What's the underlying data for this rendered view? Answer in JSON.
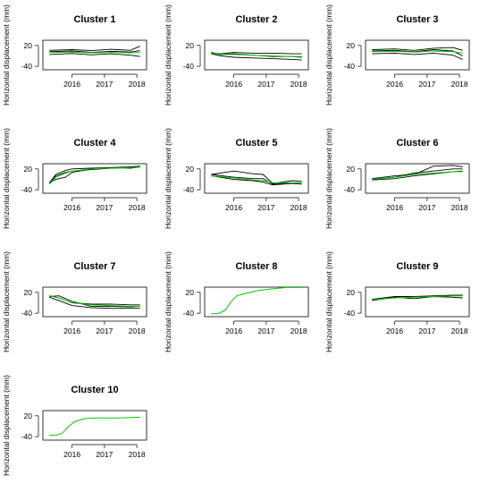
{
  "figure": {
    "panels": [
      {
        "id": 1,
        "title": "Cluster 1"
      },
      {
        "id": 2,
        "title": "Cluster 2"
      },
      {
        "id": 3,
        "title": "Cluster 3"
      },
      {
        "id": 4,
        "title": "Cluster 4"
      },
      {
        "id": 5,
        "title": "Cluster 5"
      },
      {
        "id": 6,
        "title": "Cluster 6"
      },
      {
        "id": 7,
        "title": "Cluster 7"
      },
      {
        "id": 8,
        "title": "Cluster 8"
      },
      {
        "id": 9,
        "title": "Cluster 9"
      },
      {
        "id": 10,
        "title": "Cluster 10"
      }
    ]
  },
  "chart_data": {
    "type": "line",
    "layout": "small-multiples",
    "ylabel": "Horizontal displacement (mm)",
    "xlabel": "",
    "xlim": [
      2015.1,
      2018.3
    ],
    "ylim": [
      -50,
      35
    ],
    "x_ticks": [
      2016,
      2017,
      2018
    ],
    "x_tick_labels": [
      "2016",
      "2017",
      "2018"
    ],
    "y_ticks": [
      20,
      -40
    ],
    "y_tick_labels": [
      "20",
      "-40"
    ],
    "colors": {
      "members": "#000000",
      "centroid": "#00cc00"
    },
    "grid": false,
    "legend": "none",
    "panels": [
      {
        "title": "Cluster 1",
        "members": [
          {
            "x": [
              2015.3,
              2016,
              2016.6,
              2017.2,
              2017.8,
              2018.1
            ],
            "y": [
              2,
              4,
              0,
              3,
              1,
              5
            ]
          },
          {
            "x": [
              2015.3,
              2016,
              2016.6,
              2017.2,
              2017.8,
              2018.1
            ],
            "y": [
              -6,
              -3,
              -7,
              -4,
              -8,
              -12
            ]
          },
          {
            "x": [
              2015.3,
              2016,
              2016.6,
              2017.2,
              2017.8,
              2018.1
            ],
            "y": [
              6,
              8,
              5,
              9,
              6,
              18
            ]
          }
        ],
        "centroid": {
          "x": [
            2015.3,
            2016,
            2016.6,
            2017.2,
            2017.8,
            2018.1
          ],
          "y": [
            0,
            1,
            -1,
            0,
            -1,
            0
          ]
        }
      },
      {
        "title": "Cluster 2",
        "members": [
          {
            "x": [
              2015.3,
              2015.6,
              2016,
              2016.6,
              2017.2,
              2017.8,
              2018.1
            ],
            "y": [
              0,
              -6,
              -4,
              -8,
              -12,
              -12,
              -14
            ]
          },
          {
            "x": [
              2015.3,
              2015.6,
              2016,
              2016.6,
              2017.2,
              2017.8,
              2018.1
            ],
            "y": [
              -2,
              -4,
              0,
              -2,
              -2,
              -4,
              -4
            ]
          },
          {
            "x": [
              2015.3,
              2015.6,
              2016,
              2016.6,
              2017.2,
              2017.8,
              2018.1
            ],
            "y": [
              -4,
              -10,
              -14,
              -16,
              -18,
              -20,
              -22
            ]
          }
        ],
        "centroid": {
          "x": [
            2015.3,
            2015.6,
            2016,
            2016.6,
            2017.2,
            2017.8,
            2018.1
          ],
          "y": [
            -2,
            -6,
            -6,
            -8,
            -10,
            -12,
            -12
          ]
        }
      },
      {
        "title": "Cluster 3",
        "members": [
          {
            "x": [
              2015.3,
              2016,
              2016.6,
              2017.2,
              2017.8,
              2018.1
            ],
            "y": [
              4,
              6,
              2,
              8,
              4,
              -10
            ]
          },
          {
            "x": [
              2015.3,
              2016,
              2016.6,
              2017.2,
              2017.8,
              2018.1
            ],
            "y": [
              -4,
              -2,
              -6,
              -2,
              -8,
              -20
            ]
          },
          {
            "x": [
              2015.3,
              2016,
              2016.6,
              2017.2,
              2017.8,
              2018.1
            ],
            "y": [
              8,
              10,
              6,
              12,
              14,
              6
            ]
          }
        ],
        "centroid": {
          "x": [
            2015.3,
            2016,
            2016.6,
            2017.2,
            2017.8,
            2018.1
          ],
          "y": [
            2,
            3,
            1,
            4,
            2,
            -2
          ]
        }
      },
      {
        "title": "Cluster 4",
        "members": [
          {
            "x": [
              2015.3,
              2015.5,
              2015.8,
              2016,
              2016.6,
              2017.2,
              2017.8,
              2018.1
            ],
            "y": [
              -20,
              0,
              10,
              14,
              18,
              22,
              24,
              26
            ]
          },
          {
            "x": [
              2015.3,
              2015.5,
              2015.8,
              2016,
              2016.6,
              2017.2,
              2017.8,
              2018.1
            ],
            "y": [
              -20,
              -10,
              -4,
              10,
              20,
              24,
              26,
              28
            ]
          },
          {
            "x": [
              2015.3,
              2015.5,
              2015.8,
              2016,
              2016.6,
              2017.2,
              2017.8,
              2018.1
            ],
            "y": [
              -20,
              4,
              16,
              20,
              22,
              24,
              22,
              26
            ]
          }
        ],
        "centroid": {
          "x": [
            2015.3,
            2015.5,
            2015.8,
            2016,
            2016.6,
            2017.2,
            2017.8,
            2018.1
          ],
          "y": [
            -24,
            -4,
            8,
            14,
            20,
            22,
            24,
            26
          ]
        }
      },
      {
        "title": "Cluster 5",
        "members": [
          {
            "x": [
              2015.3,
              2016,
              2016.6,
              2016.9,
              2017.2,
              2017.8,
              2018.1
            ],
            "y": [
              4,
              -4,
              -8,
              -8,
              -24,
              -20,
              -20
            ]
          },
          {
            "x": [
              2015.3,
              2016,
              2016.6,
              2016.9,
              2017.2,
              2017.8,
              2018.1
            ],
            "y": [
              4,
              14,
              6,
              4,
              -22,
              -14,
              -16
            ]
          },
          {
            "x": [
              2015.3,
              2016,
              2016.6,
              2016.9,
              2017.2,
              2017.8,
              2018.1
            ],
            "y": [
              0,
              -10,
              -14,
              -18,
              -26,
              -22,
              -24
            ]
          }
        ],
        "centroid": {
          "x": [
            2015.3,
            2016,
            2016.6,
            2016.9,
            2017.2,
            2017.8,
            2018.1
          ],
          "y": [
            0,
            -6,
            -12,
            -14,
            -20,
            -20,
            -20
          ]
        }
      },
      {
        "title": "Cluster 6",
        "members": [
          {
            "x": [
              2015.3,
              2016,
              2016.6,
              2017.2,
              2017.8,
              2018.1
            ],
            "y": [
              -10,
              -4,
              8,
              14,
              20,
              20
            ]
          },
          {
            "x": [
              2015.3,
              2016,
              2016.6,
              2017.2,
              2017.8,
              2018.1
            ],
            "y": [
              -12,
              -8,
              0,
              6,
              12,
              14
            ]
          },
          {
            "x": [
              2015.3,
              2016,
              2016.6,
              2017.2,
              2017.8,
              2018.1
            ],
            "y": [
              -8,
              0,
              4,
              28,
              30,
              26
            ]
          }
        ],
        "centroid": {
          "x": [
            2015.3,
            2016,
            2016.6,
            2017.2,
            2017.8,
            2018.1
          ],
          "y": [
            -10,
            -4,
            4,
            8,
            12,
            12
          ]
        }
      },
      {
        "title": "Cluster 7",
        "members": [
          {
            "x": [
              2015.3,
              2015.6,
              2016,
              2016.6,
              2017.2,
              2017.8,
              2018.1
            ],
            "y": [
              10,
              4,
              -10,
              -14,
              -14,
              -16,
              -16
            ]
          },
          {
            "x": [
              2015.3,
              2015.6,
              2016,
              2016.6,
              2017.2,
              2017.8,
              2018.1
            ],
            "y": [
              6,
              -4,
              -18,
              -24,
              -26,
              -26,
              -26
            ]
          },
          {
            "x": [
              2015.3,
              2015.6,
              2016,
              2016.6,
              2017.2,
              2017.8,
              2018.1
            ],
            "y": [
              8,
              10,
              -6,
              -20,
              -20,
              -22,
              -20
            ]
          }
        ],
        "centroid": {
          "x": [
            2015.3,
            2015.6,
            2016,
            2016.6,
            2017.2,
            2017.8,
            2018.1
          ],
          "y": [
            10,
            4,
            -10,
            -16,
            -18,
            -20,
            -20
          ]
        }
      },
      {
        "title": "Cluster 8",
        "members": [],
        "centroid": {
          "x": [
            2015.3,
            2015.55,
            2015.75,
            2015.9,
            2016.1,
            2016.4,
            2016.8,
            2017.2,
            2017.6,
            2018.1
          ],
          "y": [
            -42,
            -40,
            -30,
            -8,
            10,
            18,
            26,
            30,
            34,
            34
          ]
        }
      },
      {
        "title": "Cluster 9",
        "members": [
          {
            "x": [
              2015.3,
              2016,
              2016.6,
              2017.2,
              2017.8,
              2018.1
            ],
            "y": [
              -4,
              6,
              2,
              8,
              6,
              4
            ]
          },
          {
            "x": [
              2015.3,
              2016,
              2016.6,
              2017.2,
              2017.8,
              2018.1
            ],
            "y": [
              0,
              8,
              8,
              10,
              12,
              12
            ]
          }
        ],
        "centroid": {
          "x": [
            2015.3,
            2016,
            2016.6,
            2017.2,
            2017.8,
            2018.1
          ],
          "y": [
            -2,
            4,
            6,
            8,
            10,
            10
          ]
        }
      },
      {
        "title": "Cluster 10",
        "members": [],
        "centroid": {
          "x": [
            2015.3,
            2015.5,
            2015.7,
            2015.9,
            2016.1,
            2016.4,
            2016.8,
            2017.4,
            2018.1
          ],
          "y": [
            -36,
            -36,
            -30,
            -10,
            4,
            12,
            14,
            14,
            16
          ]
        }
      }
    ]
  }
}
